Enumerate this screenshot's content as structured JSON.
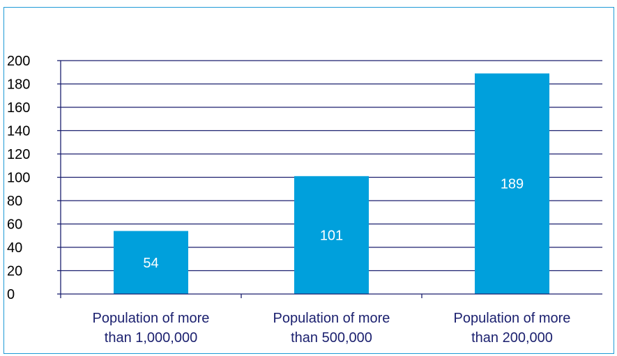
{
  "chart_data": {
    "type": "bar",
    "title": "",
    "xlabel": "",
    "ylabel": "",
    "categories": [
      [
        "Population of more",
        "than 1,000,000"
      ],
      [
        "Population of more",
        "than 500,000"
      ],
      [
        "Population of more",
        "than 200,000"
      ]
    ],
    "values": [
      54,
      101,
      189
    ],
    "data_labels": [
      "54",
      "101",
      "189"
    ],
    "ylim": [
      0,
      200
    ],
    "yticks": [
      0,
      20,
      40,
      60,
      80,
      100,
      120,
      140,
      160,
      180,
      200
    ],
    "ytick_labels": [
      "0",
      "20",
      "40",
      "60",
      "80",
      "100",
      "120",
      "140",
      "160",
      "180",
      "200"
    ],
    "grid": true,
    "legend": "none",
    "colors": {
      "bar": "#00a0dc",
      "grid": "#1a1f6e",
      "text": "#1a1f6e",
      "data_label": "#ffffff",
      "frame_border": "#1f9ad6"
    }
  }
}
